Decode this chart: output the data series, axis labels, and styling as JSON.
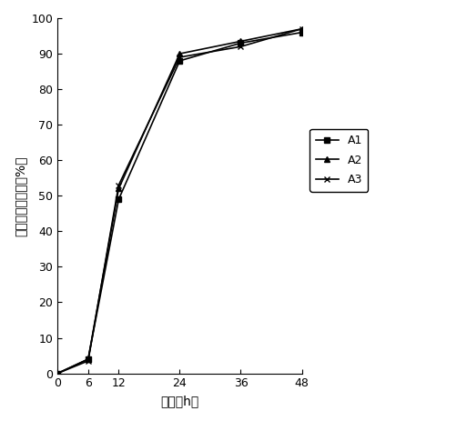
{
  "x": [
    0,
    6,
    12,
    24,
    36,
    48
  ],
  "A1": [
    0,
    4.0,
    49.0,
    88.0,
    93.0,
    96.0
  ],
  "A2": [
    0,
    4.0,
    52.0,
    90.0,
    93.5,
    97.0
  ],
  "A3": [
    0,
    3.5,
    53.0,
    89.0,
    92.0,
    97.0
  ],
  "xlabel": "时间（h）",
  "ylabel": "亚础酸盐降解率（%）",
  "xlim": [
    0,
    48
  ],
  "ylim": [
    0,
    100
  ],
  "xticks": [
    0,
    6,
    12,
    24,
    36,
    48
  ],
  "yticks": [
    0,
    10,
    20,
    30,
    40,
    50,
    60,
    70,
    80,
    90,
    100
  ],
  "legend_labels": [
    "A1",
    "A2",
    "A3"
  ],
  "line_color": "#000000",
  "marker_A1": "s",
  "marker_A2": "^",
  "marker_A3": "x",
  "linewidth": 1.2,
  "markersize": 5,
  "figsize": [
    5.13,
    4.63
  ],
  "dpi": 100
}
